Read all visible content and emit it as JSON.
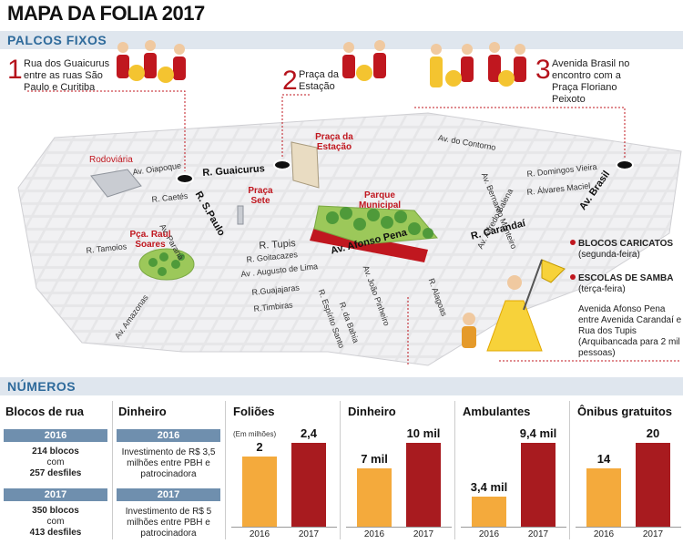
{
  "title": "MAPA DA FOLIA 2017",
  "palcos": {
    "heading": "PALCOS FIXOS",
    "stages": [
      {
        "num": "1",
        "text": "Rua dos Guaicurus entre as ruas São Paulo e Curitiba"
      },
      {
        "num": "2",
        "text": "Praça da Estação"
      },
      {
        "num": "3",
        "text": "Avenida Brasil no encontro com a Praça Floriano Peixoto"
      }
    ]
  },
  "map": {
    "streets": {
      "av_contorno": "Av. do Contorno",
      "av_oiapoque": "Av. Oiapoque",
      "r_guaicurus": "R. Guaicurus",
      "r_caetes": "R. Caetés",
      "r_s_paulo": "R. S.Paulo",
      "av_parana": "Av. Paraná",
      "r_tamoios": "R. Tamoios",
      "r_tupis": "R. Tupis",
      "r_goitacazes": "R. Goitacazes",
      "av_augusto": "Av . Augusto de Lima",
      "r_guajajaras": "R.Guajajaras",
      "r_timbiras": "R.Timbiras",
      "av_amazonas": "Av. Amazonas",
      "r_espirito_santo": "R. Espírito Santo",
      "r_da_bahia": "R. da Bahia",
      "av_joao_pinheiro": "Av. João Pinheiro",
      "av_afonso_pena": "Av. Afonso Pena",
      "r_alagoas": "R. Alagoas",
      "av_alfredo_balena": "Av. Alfredo Balena",
      "av_bernardo_monteiro": "Av. Bernardo Monteiro",
      "r_carandai": "R. Carandaí",
      "r_domingos_vieira": "R. Domingos Vieira",
      "r_alvares_maciel": "R. Álvares Maciel",
      "av_brasil": "Av. Brasil"
    },
    "places": {
      "rodoviaria": "Rodoviária",
      "praca_estacao": "Praça da Estação",
      "praca_sete": "Praça Sete",
      "parque_municipal": "Parque Municipal",
      "pca_raul_soares": "Pça. Raul Soares"
    }
  },
  "legend": {
    "blocos_title": "BLOCOS CARICATOS",
    "blocos_day": "(segunda-feira)",
    "escolas_title": "ESCOLAS DE SAMBA",
    "escolas_day": "(terça-feira)",
    "escolas_desc": "Avenida Afonso Pena entre Avenida Carandaí e Rua dos Tupis (Arquibancada para 2 mil pessoas)"
  },
  "numeros": {
    "heading": "NÚMEROS",
    "blocos": {
      "title": "Blocos de rua",
      "rows": [
        {
          "year": "2016",
          "l1": "214 blocos",
          "l2": "com",
          "l3": "257 desfiles"
        },
        {
          "year": "2017",
          "l1": "350 blocos",
          "l2": "com",
          "l3": "413 desfiles"
        }
      ]
    },
    "dinheiro_txt": {
      "title": "Dinheiro",
      "rows": [
        {
          "year": "2016",
          "text": "Investimento de R$ 3,5 milhões entre PBH e patrocinadora"
        },
        {
          "year": "2017",
          "text": "Investimento de R$ 5 milhões entre PBH e patrocinadora"
        }
      ]
    }
  },
  "chart_data": [
    {
      "type": "bar",
      "title": "Foliões",
      "unit_note": "(Em milhões)",
      "categories": [
        "2016",
        "2017"
      ],
      "values": [
        2,
        2.4
      ],
      "labels": [
        "2",
        "2,4"
      ],
      "colors": [
        "#f4aa3c",
        "#a81b1f"
      ]
    },
    {
      "type": "bar",
      "title": "Dinheiro",
      "categories": [
        "2016",
        "2017"
      ],
      "values": [
        7000,
        10000
      ],
      "labels": [
        "7 mil",
        "10 mil"
      ],
      "colors": [
        "#f4aa3c",
        "#a81b1f"
      ]
    },
    {
      "type": "bar",
      "title": "Ambulantes",
      "categories": [
        "2016",
        "2017"
      ],
      "values": [
        3400,
        9400
      ],
      "labels": [
        "3,4 mil",
        "9,4 mil"
      ],
      "colors": [
        "#f4aa3c",
        "#a81b1f"
      ]
    },
    {
      "type": "bar",
      "title": "Ônibus gratuitos",
      "categories": [
        "2016",
        "2017"
      ],
      "values": [
        14,
        20
      ],
      "labels": [
        "14",
        "20"
      ],
      "colors": [
        "#f4aa3c",
        "#a81b1f"
      ]
    }
  ],
  "colors": {
    "accent": "#c0171f",
    "section": "#2e6a9b",
    "bar2016": "#f4aa3c",
    "bar2017": "#a81b1f"
  }
}
